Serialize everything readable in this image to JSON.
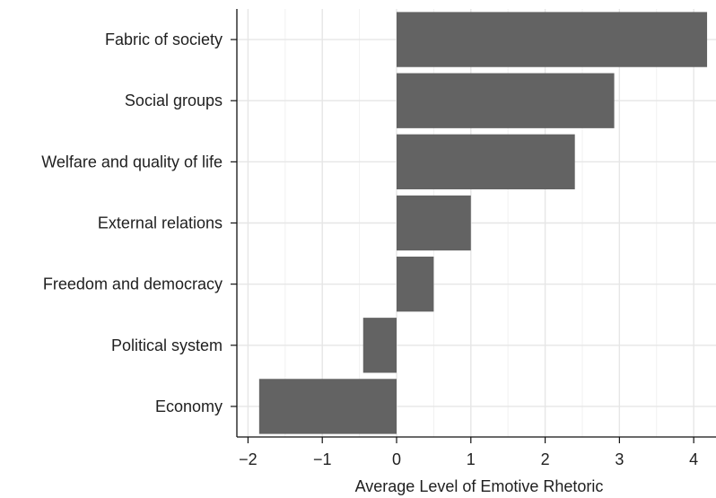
{
  "chart_data": {
    "type": "bar",
    "orientation": "horizontal",
    "categories": [
      "Fabric of society",
      "Social groups",
      "Welfare and quality of life",
      "External relations",
      "Freedom and democracy",
      "Political system",
      "Economy"
    ],
    "values": [
      4.18,
      2.93,
      2.4,
      1.0,
      0.5,
      -0.45,
      -1.85
    ],
    "title": "",
    "xlabel": "Average Level of Emotive Rhetoric",
    "ylabel": "",
    "xlim": [
      -2.15,
      4.3
    ],
    "x_ticks": [
      -2,
      -1,
      0,
      1,
      2,
      3,
      4
    ],
    "x_tick_labels": [
      "−2",
      "−1",
      "0",
      "1",
      "2",
      "3",
      "4"
    ],
    "grid": true,
    "legend": "none",
    "bar_color": "#636363"
  }
}
